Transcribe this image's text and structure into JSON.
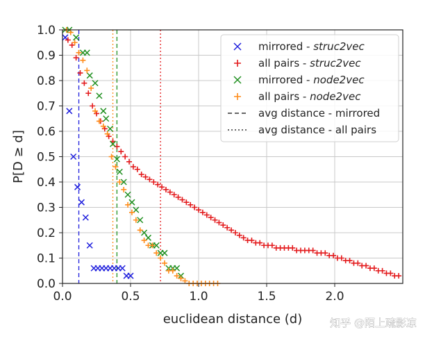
{
  "chart_data": {
    "type": "scatter",
    "title": "",
    "xlabel": "euclidean distance (d)",
    "ylabel": "P[D ≥ d]",
    "xlim": [
      0.0,
      2.5
    ],
    "ylim": [
      0.0,
      1.0
    ],
    "xticks": [
      0.0,
      0.5,
      1.0,
      1.5,
      2.0
    ],
    "xtick_labels": [
      "0.0",
      "0.5",
      "1.0",
      "1.5",
      "2.0"
    ],
    "yticks": [
      0.0,
      0.1,
      0.2,
      0.3,
      0.4,
      0.5,
      0.6,
      0.7,
      0.8,
      0.9,
      1.0
    ],
    "ytick_labels": [
      "0.0",
      "0.1",
      "0.2",
      "0.3",
      "0.4",
      "0.5",
      "0.6",
      "0.7",
      "0.8",
      "0.9",
      "1.0"
    ],
    "grid": true,
    "legend_position": "top-right",
    "series": [
      {
        "name": "mirrored - ",
        "method": "struc2vec",
        "marker": "x",
        "color": "#1f1fdd",
        "x": [
          0.02,
          0.05,
          0.08,
          0.11,
          0.14,
          0.17,
          0.2,
          0.23,
          0.26,
          0.29,
          0.32,
          0.35,
          0.38,
          0.41,
          0.44,
          0.47,
          0.5
        ],
        "y": [
          0.97,
          0.68,
          0.5,
          0.38,
          0.32,
          0.26,
          0.15,
          0.06,
          0.06,
          0.06,
          0.06,
          0.06,
          0.06,
          0.06,
          0.06,
          0.03,
          0.03
        ]
      },
      {
        "name": "all pairs - ",
        "method": "struc2vec",
        "marker": "+",
        "color": "#e31a1c",
        "x": [
          0.04,
          0.07,
          0.1,
          0.13,
          0.16,
          0.19,
          0.22,
          0.25,
          0.28,
          0.31,
          0.34,
          0.37,
          0.4,
          0.43,
          0.46,
          0.49,
          0.52,
          0.55,
          0.58,
          0.61,
          0.64,
          0.67,
          0.7,
          0.73,
          0.76,
          0.79,
          0.82,
          0.85,
          0.88,
          0.91,
          0.94,
          0.97,
          1.0,
          1.03,
          1.06,
          1.09,
          1.12,
          1.15,
          1.18,
          1.21,
          1.24,
          1.27,
          1.3,
          1.33,
          1.36,
          1.39,
          1.42,
          1.45,
          1.48,
          1.51,
          1.54,
          1.57,
          1.6,
          1.63,
          1.66,
          1.69,
          1.72,
          1.75,
          1.78,
          1.81,
          1.84,
          1.87,
          1.9,
          1.93,
          1.96,
          1.99,
          2.02,
          2.05,
          2.08,
          2.11,
          2.14,
          2.17,
          2.2,
          2.23,
          2.26,
          2.29,
          2.32,
          2.35,
          2.38,
          2.41,
          2.44,
          2.47
        ],
        "y": [
          0.96,
          0.94,
          0.89,
          0.83,
          0.79,
          0.75,
          0.7,
          0.67,
          0.64,
          0.61,
          0.58,
          0.56,
          0.54,
          0.52,
          0.5,
          0.48,
          0.46,
          0.45,
          0.43,
          0.42,
          0.41,
          0.4,
          0.39,
          0.38,
          0.37,
          0.36,
          0.35,
          0.34,
          0.33,
          0.32,
          0.31,
          0.3,
          0.29,
          0.28,
          0.27,
          0.26,
          0.25,
          0.24,
          0.23,
          0.22,
          0.21,
          0.2,
          0.19,
          0.18,
          0.17,
          0.17,
          0.16,
          0.16,
          0.15,
          0.15,
          0.15,
          0.14,
          0.14,
          0.14,
          0.14,
          0.14,
          0.13,
          0.13,
          0.13,
          0.13,
          0.13,
          0.12,
          0.12,
          0.12,
          0.11,
          0.11,
          0.1,
          0.1,
          0.09,
          0.09,
          0.08,
          0.08,
          0.07,
          0.07,
          0.06,
          0.06,
          0.05,
          0.05,
          0.04,
          0.04,
          0.03,
          0.03
        ]
      },
      {
        "name": "mirrored - ",
        "method": "node2vec",
        "marker": "x",
        "color": "#1f8f1f",
        "x": [
          0.02,
          0.05,
          0.1,
          0.15,
          0.18,
          0.2,
          0.24,
          0.27,
          0.3,
          0.32,
          0.35,
          0.37,
          0.4,
          0.42,
          0.45,
          0.48,
          0.51,
          0.54,
          0.57,
          0.6,
          0.63,
          0.66,
          0.69,
          0.72,
          0.75,
          0.78,
          0.81,
          0.84,
          0.87
        ],
        "y": [
          1.0,
          1.0,
          0.97,
          0.91,
          0.91,
          0.82,
          0.79,
          0.74,
          0.68,
          0.65,
          0.61,
          0.55,
          0.49,
          0.44,
          0.4,
          0.35,
          0.32,
          0.29,
          0.25,
          0.2,
          0.18,
          0.15,
          0.15,
          0.12,
          0.12,
          0.06,
          0.06,
          0.06,
          0.03
        ]
      },
      {
        "name": "all pairs - ",
        "method": "node2vec",
        "marker": "+",
        "color": "#ff8c1a",
        "x": [
          0.03,
          0.06,
          0.09,
          0.12,
          0.15,
          0.18,
          0.21,
          0.24,
          0.27,
          0.3,
          0.33,
          0.36,
          0.39,
          0.42,
          0.45,
          0.48,
          0.51,
          0.54,
          0.57,
          0.6,
          0.63,
          0.66,
          0.69,
          0.72,
          0.75,
          0.78,
          0.81,
          0.84,
          0.87,
          0.9,
          0.93,
          0.96,
          0.99,
          1.02,
          1.05,
          1.08,
          1.11,
          1.14
        ],
        "y": [
          1.0,
          0.99,
          0.95,
          0.91,
          0.88,
          0.84,
          0.77,
          0.68,
          0.64,
          0.62,
          0.59,
          0.5,
          0.46,
          0.4,
          0.37,
          0.31,
          0.28,
          0.25,
          0.21,
          0.17,
          0.15,
          0.15,
          0.12,
          0.1,
          0.08,
          0.05,
          0.05,
          0.03,
          0.02,
          0.01,
          0.0,
          0.0,
          0.0,
          0.0,
          0.0,
          0.0,
          0.0,
          0.0
        ]
      }
    ],
    "vertical_lines": [
      {
        "name": "struc2vec mirrored avg",
        "x": 0.12,
        "color": "#1f1fdd",
        "style": "dashed"
      },
      {
        "name": "node2vec all pairs avg",
        "x": 0.37,
        "color": "#ff8c1a",
        "style": "dotted"
      },
      {
        "name": "node2vec mirrored avg",
        "x": 0.4,
        "color": "#1f8f1f",
        "style": "dashed"
      },
      {
        "name": "struc2vec all pairs avg",
        "x": 0.72,
        "color": "#e31a1c",
        "style": "dotted"
      }
    ],
    "legend": [
      {
        "marker": "x",
        "color": "#1f1fdd",
        "text": "mirrored - ",
        "italic": "struc2vec"
      },
      {
        "marker": "+",
        "color": "#e31a1c",
        "text": "all pairs - ",
        "italic": "struc2vec"
      },
      {
        "marker": "x",
        "color": "#1f8f1f",
        "text": "mirrored - ",
        "italic": "node2vec"
      },
      {
        "marker": "+",
        "color": "#ff8c1a",
        "text": "all pairs - ",
        "italic": "node2vec"
      },
      {
        "marker": "dashed",
        "color": "#333333",
        "text": "avg distance - mirrored",
        "italic": ""
      },
      {
        "marker": "dotted",
        "color": "#333333",
        "text": "avg distance - all pairs",
        "italic": ""
      }
    ]
  },
  "watermark": {
    "text": "知乎 @陌上疏影凉"
  }
}
